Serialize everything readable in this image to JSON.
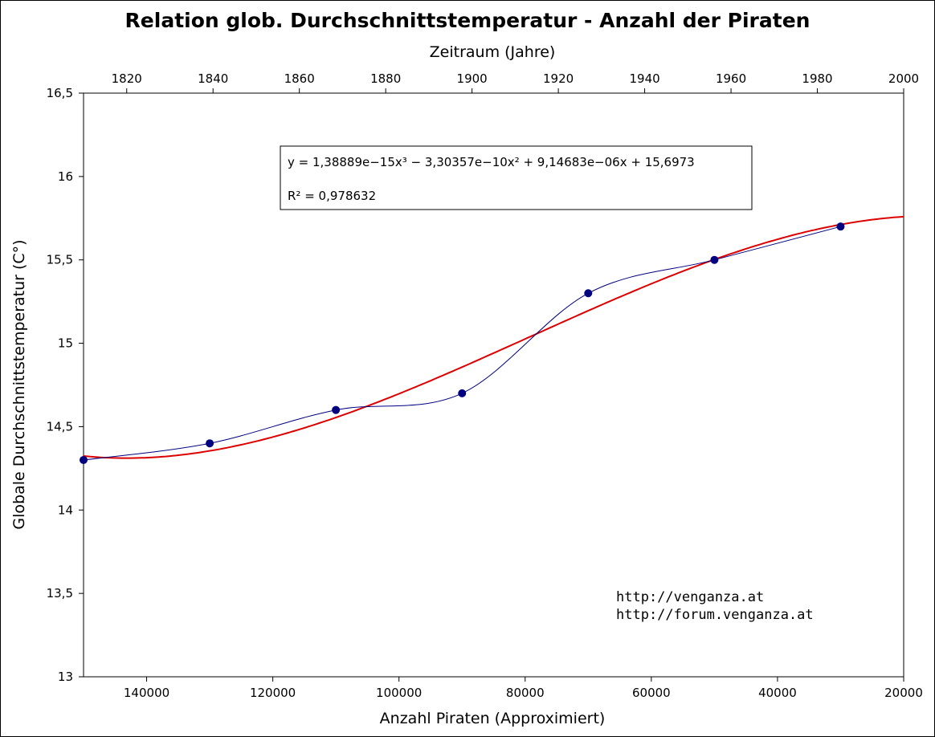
{
  "chart_data": {
    "type": "scatter",
    "title": "Relation glob. Durchschnittstemperatur - Anzahl der Piraten",
    "xlabel": "Anzahl Piraten (Approximiert)",
    "x2label": "Zeitraum (Jahre)",
    "ylabel": "Globale Durchschnittstemperatur (C°)",
    "xlim": [
      150000,
      20000
    ],
    "x_reversed": true,
    "x_ticks": [
      140000,
      120000,
      100000,
      80000,
      60000,
      40000,
      20000
    ],
    "x_tick_labels": [
      "140000",
      "120000",
      "100000",
      "80000",
      "60000",
      "40000",
      "20000"
    ],
    "x2lim": [
      1810,
      2000
    ],
    "x2_ticks": [
      1820,
      1840,
      1860,
      1880,
      1900,
      1920,
      1940,
      1960,
      1980,
      2000
    ],
    "x2_tick_labels": [
      "1820",
      "1840",
      "1860",
      "1880",
      "1900",
      "1920",
      "1940",
      "1960",
      "1980",
      "2000"
    ],
    "ylim": [
      13,
      16.5
    ],
    "y_ticks": [
      13,
      13.5,
      14,
      14.5,
      15,
      15.5,
      16,
      16.5
    ],
    "y_tick_labels": [
      "13",
      "13,5",
      "14",
      "14,5",
      "15",
      "15,5",
      "16",
      "16,5"
    ],
    "grid": false,
    "series": [
      {
        "x": [
          150000,
          130000,
          110000,
          90000,
          70000,
          50000,
          30000
        ],
        "y": [
          14.3,
          14.4,
          14.6,
          14.7,
          15.3,
          15.5,
          15.7
        ],
        "color": "#000080",
        "style": "markers+smooth-line"
      }
    ],
    "trendline": {
      "type": "polynomial-3",
      "coefficients": [
        1.38889e-15,
        -3.30357e-10,
        9.14683e-06,
        15.6973
      ],
      "color": "#dd0000"
    },
    "annotations": {
      "equation": "y = 1,38889e−15x³ − 3,30357e−10x² + 9,14683e−06x + 15,6973",
      "r_squared": "R² = 0,978632",
      "credits": [
        "http://venganza.at",
        "http://forum.venganza.at"
      ]
    }
  }
}
